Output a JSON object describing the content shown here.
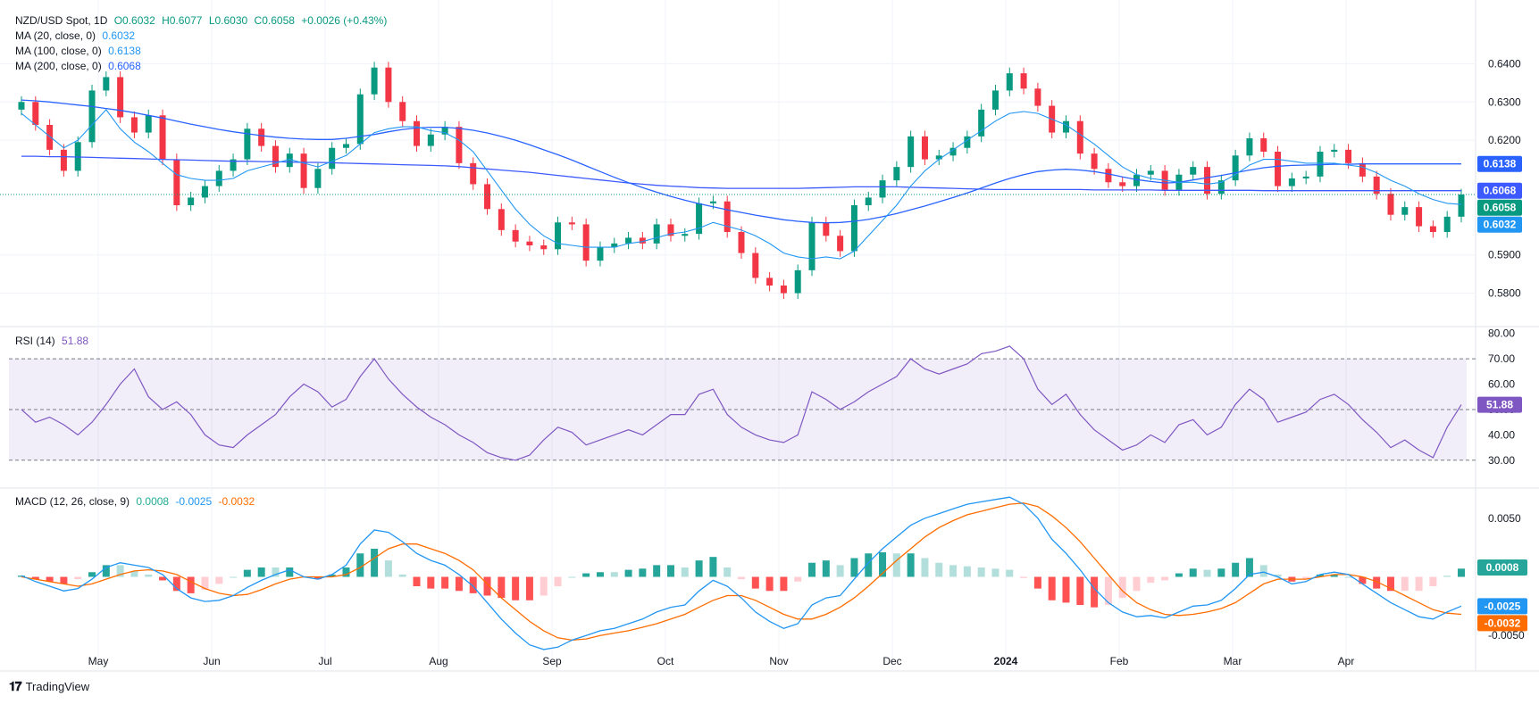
{
  "header": {
    "symbol": "NZD/USD Spot, 1D",
    "open": "O0.6032",
    "high": "H0.6077",
    "low": "L0.6030",
    "close": "C0.6058",
    "change": "+0.0026 (+0.43%)"
  },
  "indicators": {
    "ma20": {
      "label": "MA (20, close, 0)",
      "value": "0.6032"
    },
    "ma100": {
      "label": "MA (100, close, 0)",
      "value": "0.6138"
    },
    "ma200": {
      "label": "MA (200, close, 0)",
      "value": "0.6068"
    },
    "rsi": {
      "label": "RSI (14)",
      "value": "51.88"
    },
    "macd": {
      "label": "MACD (12, 26, close, 9)",
      "hist": "0.0008",
      "macd": "-0.0025",
      "signal": "-0.0032"
    }
  },
  "brand": "TradingView",
  "colors": {
    "up": "#26a69a",
    "down": "#ef5350",
    "ma20": "#2196f3",
    "ma100": "#3d5afe",
    "ma200": "#2962ff",
    "rsi": "#7e57c2",
    "macd": "#2196f3",
    "signal": "#ff6d00"
  },
  "chart_data": {
    "type": "candlestick",
    "time_labels": [
      "May",
      "Jun",
      "Jul",
      "Aug",
      "Sep",
      "Oct",
      "Nov",
      "Dec",
      "2024",
      "Feb",
      "Mar",
      "Apr"
    ],
    "price_axis": {
      "ticks": [
        "0.6400",
        "0.6300",
        "0.6200",
        "0.5900",
        "0.5800"
      ],
      "ylim": [
        0.575,
        0.645
      ]
    },
    "price_badges": [
      {
        "label": "0.6138",
        "series": "ma100"
      },
      {
        "label": "0.6068",
        "series": "ma200"
      },
      {
        "label": "0.6058",
        "series": "close"
      },
      {
        "label": "0.6032",
        "series": "ma20"
      }
    ],
    "close": [
      0.63,
      0.624,
      0.6175,
      0.612,
      0.6195,
      0.633,
      0.6365,
      0.626,
      0.622,
      0.6265,
      0.615,
      0.603,
      0.605,
      0.608,
      0.612,
      0.615,
      0.623,
      0.6185,
      0.613,
      0.6165,
      0.6075,
      0.6125,
      0.618,
      0.619,
      0.632,
      0.639,
      0.63,
      0.625,
      0.6185,
      0.6215,
      0.6235,
      0.614,
      0.6085,
      0.602,
      0.5965,
      0.5935,
      0.5925,
      0.5915,
      0.5985,
      0.598,
      0.5885,
      0.592,
      0.593,
      0.5945,
      0.593,
      0.598,
      0.595,
      0.5955,
      0.6035,
      0.604,
      0.596,
      0.5905,
      0.584,
      0.582,
      0.58,
      0.586,
      0.5985,
      0.595,
      0.591,
      0.603,
      0.605,
      0.6095,
      0.613,
      0.621,
      0.615,
      0.616,
      0.618,
      0.621,
      0.628,
      0.633,
      0.6375,
      0.6335,
      0.629,
      0.622,
      0.625,
      0.6165,
      0.6125,
      0.609,
      0.608,
      0.611,
      0.612,
      0.607,
      0.611,
      0.613,
      0.606,
      0.6095,
      0.616,
      0.6205,
      0.617,
      0.608,
      0.61,
      0.6105,
      0.617,
      0.6175,
      0.614,
      0.6105,
      0.606,
      0.6005,
      0.6025,
      0.5975,
      0.596,
      0.6,
      0.6058
    ],
    "ma20": [
      0.627,
      0.624,
      0.621,
      0.618,
      0.62,
      0.624,
      0.628,
      0.623,
      0.6195,
      0.617,
      0.614,
      0.611,
      0.61,
      0.6095,
      0.6095,
      0.61,
      0.612,
      0.613,
      0.614,
      0.615,
      0.614,
      0.613,
      0.6145,
      0.616,
      0.619,
      0.622,
      0.623,
      0.6235,
      0.6235,
      0.6225,
      0.622,
      0.62,
      0.617,
      0.612,
      0.607,
      0.602,
      0.598,
      0.595,
      0.593,
      0.5925,
      0.592,
      0.592,
      0.592,
      0.593,
      0.5935,
      0.5945,
      0.5955,
      0.596,
      0.597,
      0.5985,
      0.5975,
      0.5965,
      0.595,
      0.593,
      0.5905,
      0.5895,
      0.589,
      0.5895,
      0.589,
      0.591,
      0.595,
      0.599,
      0.603,
      0.608,
      0.612,
      0.615,
      0.6175,
      0.62,
      0.6225,
      0.625,
      0.627,
      0.6275,
      0.627,
      0.6255,
      0.624,
      0.6215,
      0.619,
      0.616,
      0.613,
      0.611,
      0.61,
      0.6095,
      0.609,
      0.609,
      0.6085,
      0.609,
      0.611,
      0.6135,
      0.615,
      0.615,
      0.6145,
      0.614,
      0.614,
      0.614,
      0.6135,
      0.613,
      0.6115,
      0.6095,
      0.608,
      0.606,
      0.6045,
      0.6035,
      0.6032
    ],
    "ma100": [
      0.6305,
      0.6303,
      0.63,
      0.6296,
      0.6292,
      0.6288,
      0.6283,
      0.6278,
      0.6272,
      0.6265,
      0.6258,
      0.625,
      0.6242,
      0.6235,
      0.6228,
      0.6222,
      0.6217,
      0.6212,
      0.6208,
      0.6205,
      0.6203,
      0.6202,
      0.6202,
      0.6205,
      0.621,
      0.6215,
      0.6222,
      0.6228,
      0.6232,
      0.6234,
      0.6234,
      0.6231,
      0.6226,
      0.6219,
      0.621,
      0.62,
      0.6188,
      0.6175,
      0.6162,
      0.6148,
      0.6133,
      0.6118,
      0.6103,
      0.6089,
      0.6076,
      0.6064,
      0.6053,
      0.6043,
      0.6034,
      0.6026,
      0.6018,
      0.6011,
      0.6004,
      0.5998,
      0.5992,
      0.5988,
      0.5985,
      0.5984,
      0.5985,
      0.5988,
      0.5993,
      0.6,
      0.6008,
      0.6018,
      0.6028,
      0.6039,
      0.605,
      0.6062,
      0.6075,
      0.6088,
      0.61,
      0.611,
      0.6118,
      0.6122,
      0.6124,
      0.6122,
      0.6118,
      0.6112,
      0.6104,
      0.6097,
      0.6092,
      0.6088,
      0.609,
      0.6096,
      0.6102,
      0.6108,
      0.6115,
      0.6122,
      0.6128,
      0.6132,
      0.6134,
      0.6135,
      0.6136,
      0.6137,
      0.6137,
      0.6138,
      0.6138,
      0.6138,
      0.6138,
      0.6138,
      0.6138,
      0.6138,
      0.6138
    ],
    "ma200": [
      0.6158,
      0.6158,
      0.6157,
      0.6157,
      0.6156,
      0.6155,
      0.6154,
      0.6153,
      0.6152,
      0.6151,
      0.615,
      0.6149,
      0.6148,
      0.6147,
      0.6146,
      0.6145,
      0.6145,
      0.6144,
      0.6144,
      0.6143,
      0.6142,
      0.6142,
      0.6141,
      0.614,
      0.6139,
      0.6138,
      0.6137,
      0.6136,
      0.6135,
      0.6134,
      0.6133,
      0.6131,
      0.6128,
      0.6125,
      0.6122,
      0.6119,
      0.6116,
      0.6112,
      0.6108,
      0.6104,
      0.61,
      0.6096,
      0.6092,
      0.6088,
      0.6085,
      0.6082,
      0.608,
      0.6078,
      0.6076,
      0.6075,
      0.6074,
      0.6074,
      0.6074,
      0.6074,
      0.6074,
      0.6074,
      0.6075,
      0.6076,
      0.6077,
      0.6078,
      0.6078,
      0.6078,
      0.6078,
      0.6077,
      0.6076,
      0.6075,
      0.6074,
      0.6073,
      0.6072,
      0.6071,
      0.6071,
      0.6071,
      0.6071,
      0.6071,
      0.6071,
      0.6071,
      0.607,
      0.607,
      0.607,
      0.607,
      0.607,
      0.6069,
      0.6069,
      0.6069,
      0.6069,
      0.6069,
      0.6069,
      0.6069,
      0.6068,
      0.6068,
      0.6068,
      0.6068,
      0.6068,
      0.6068,
      0.6068,
      0.6068,
      0.6068,
      0.6068,
      0.6068,
      0.6068,
      0.6068,
      0.6068,
      0.6068
    ],
    "rsi": {
      "ticks": [
        "80.00",
        "70.00",
        "60.00",
        "50.00",
        "40.00",
        "30.00"
      ],
      "ylim": [
        25,
        82
      ],
      "bands": [
        30,
        50,
        70
      ],
      "values": [
        50,
        45,
        47,
        44,
        40,
        45,
        52,
        60,
        66,
        55,
        50,
        53,
        48,
        40,
        36,
        35,
        40,
        44,
        48,
        55,
        60,
        57,
        51,
        54,
        63,
        70,
        62,
        56,
        51,
        47,
        44,
        40,
        37,
        33,
        31,
        30,
        32,
        38,
        43,
        41,
        36,
        38,
        40,
        42,
        40,
        44,
        48,
        48,
        56,
        58,
        48,
        43,
        40,
        38,
        37,
        40,
        57,
        54,
        50,
        53,
        57,
        60,
        63,
        70,
        66,
        64,
        66,
        68,
        72,
        73,
        75,
        70,
        58,
        52,
        56,
        48,
        42,
        38,
        34,
        36,
        40,
        37,
        44,
        46,
        40,
        43,
        52,
        58,
        54,
        45,
        47,
        49,
        54,
        56,
        52,
        46,
        41,
        35,
        38,
        34,
        31,
        43,
        51.88
      ]
    },
    "macd": {
      "ticks": [
        "0.0050",
        "-0.0050"
      ],
      "ylim": [
        -0.0075,
        0.0075
      ],
      "macd": [
        0.0001,
        -0.0004,
        -0.0008,
        -0.0012,
        -0.001,
        -0.0002,
        0.0008,
        0.0012,
        0.001,
        0.0008,
        0.0002,
        -0.001,
        -0.0018,
        -0.0021,
        -0.002,
        -0.0016,
        -0.0009,
        -0.0003,
        0.0002,
        0.0006,
        0.0,
        -0.0002,
        0.0002,
        0.001,
        0.0028,
        0.004,
        0.0038,
        0.003,
        0.002,
        0.0014,
        0.001,
        0.0002,
        -0.0008,
        -0.0022,
        -0.0036,
        -0.0048,
        -0.0058,
        -0.0062,
        -0.006,
        -0.0054,
        -0.005,
        -0.0046,
        -0.0044,
        -0.004,
        -0.0036,
        -0.003,
        -0.0026,
        -0.0024,
        -0.0012,
        -0.0003,
        -0.0008,
        -0.0018,
        -0.003,
        -0.0038,
        -0.0044,
        -0.004,
        -0.0024,
        -0.0018,
        -0.0016,
        -0.0002,
        0.0012,
        0.0024,
        0.0034,
        0.0044,
        0.005,
        0.0054,
        0.0058,
        0.0062,
        0.0064,
        0.0066,
        0.0068,
        0.0062,
        0.005,
        0.0032,
        0.002,
        0.0006,
        -0.001,
        -0.0022,
        -0.003,
        -0.0034,
        -0.0033,
        -0.0035,
        -0.003,
        -0.0025,
        -0.0024,
        -0.002,
        -0.001,
        0.0002,
        0.0004,
        0.0,
        -0.0006,
        -0.0004,
        0.0002,
        0.0004,
        0.0002,
        -0.0006,
        -0.0014,
        -0.0022,
        -0.0028,
        -0.0034,
        -0.0036,
        -0.003,
        -0.0025
      ],
      "signal": [
        0.0,
        -0.0002,
        -0.0004,
        -0.0006,
        -0.0008,
        -0.0006,
        -0.0002,
        0.0002,
        0.0005,
        0.0006,
        0.0005,
        0.0002,
        -0.0004,
        -0.001,
        -0.0014,
        -0.0016,
        -0.0015,
        -0.0011,
        -0.0006,
        -0.0002,
        0.0,
        0.0,
        0.0,
        0.0002,
        0.0008,
        0.0016,
        0.0024,
        0.0028,
        0.0028,
        0.0024,
        0.002,
        0.0014,
        0.0006,
        -0.0006,
        -0.0018,
        -0.0028,
        -0.0038,
        -0.0046,
        -0.0052,
        -0.0054,
        -0.0053,
        -0.005,
        -0.0048,
        -0.0046,
        -0.0043,
        -0.004,
        -0.0036,
        -0.0032,
        -0.0026,
        -0.002,
        -0.0016,
        -0.0016,
        -0.002,
        -0.0026,
        -0.0032,
        -0.0036,
        -0.0036,
        -0.0032,
        -0.0026,
        -0.0018,
        -0.0008,
        0.0003,
        0.0014,
        0.0024,
        0.0034,
        0.0042,
        0.0048,
        0.0053,
        0.0056,
        0.0059,
        0.0062,
        0.0063,
        0.006,
        0.0052,
        0.0042,
        0.003,
        0.0016,
        0.0002,
        -0.0012,
        -0.0022,
        -0.0028,
        -0.0032,
        -0.0033,
        -0.0032,
        -0.003,
        -0.0027,
        -0.0022,
        -0.0014,
        -0.0006,
        -0.0002,
        -0.0002,
        -0.0002,
        0.0,
        0.0002,
        0.0002,
        0.0,
        -0.0004,
        -0.001,
        -0.0016,
        -0.0022,
        -0.0028,
        -0.0031,
        -0.0032
      ]
    }
  }
}
